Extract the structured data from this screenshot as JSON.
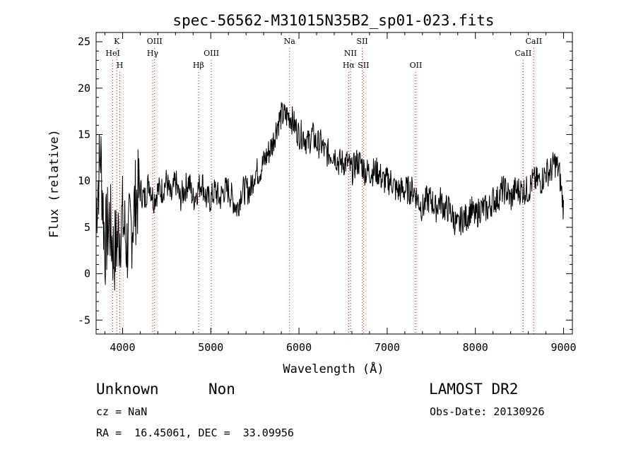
{
  "chart_data": {
    "type": "line",
    "title": "spec-56562-M31015N35B2_sp01-023.fits",
    "xlabel": "Wavelength (Å)",
    "ylabel": "Flux (relative)",
    "xlim": [
      3700,
      9100
    ],
    "ylim": [
      -6.5,
      26
    ],
    "xticks": [
      4000,
      5000,
      6000,
      7000,
      8000,
      9000
    ],
    "yticks": [
      -5,
      0,
      5,
      10,
      15,
      20,
      25
    ],
    "grid": false,
    "series": [
      {
        "x": [
          3700,
          3750,
          3800,
          3850,
          3900,
          3950,
          4000,
          4050,
          4100,
          4150,
          4200,
          4250,
          4300,
          4350,
          4400,
          4450,
          4500,
          4550,
          4600,
          4650,
          4700,
          4750,
          4800,
          4850,
          4900,
          4950,
          5000,
          5050,
          5100,
          5150,
          5200,
          5250,
          5300,
          5350,
          5400,
          5450,
          5500,
          5550,
          5600,
          5650,
          5700,
          5750,
          5800,
          5850,
          5900,
          5950,
          6000,
          6050,
          6100,
          6150,
          6200,
          6250,
          6300,
          6350,
          6400,
          6450,
          6500,
          6550,
          6600,
          6650,
          6700,
          6750,
          6800,
          6850,
          6900,
          6950,
          7000,
          7050,
          7100,
          7150,
          7200,
          7250,
          7300,
          7350,
          7400,
          7450,
          7500,
          7550,
          7600,
          7650,
          7700,
          7750,
          7800,
          7850,
          7900,
          7950,
          8000,
          8050,
          8100,
          8150,
          8200,
          8250,
          8300,
          8350,
          8400,
          8450,
          8500,
          8550,
          8600,
          8650,
          8700,
          8750,
          8800,
          8850,
          8900,
          8950,
          9000
        ],
        "y": [
          7,
          13,
          3,
          6,
          2,
          4,
          6,
          3,
          5,
          8,
          9,
          8,
          10,
          8,
          9,
          9,
          10,
          8,
          10,
          8,
          9,
          10,
          8,
          9,
          10,
          8,
          8,
          9,
          8,
          9,
          9,
          8,
          7,
          9,
          9,
          9,
          11,
          11,
          12,
          13,
          14,
          16,
          17,
          17,
          17,
          16,
          15,
          15,
          14,
          15,
          14,
          14,
          13,
          13,
          13,
          12,
          12,
          12,
          11,
          12,
          12,
          11,
          11,
          11,
          11,
          10,
          10,
          10,
          9,
          9,
          9,
          9,
          9,
          8,
          7,
          8,
          8,
          7,
          8,
          7,
          7,
          6,
          5,
          6,
          6,
          7,
          6,
          7,
          7,
          7,
          8,
          8,
          9,
          9,
          8,
          9,
          9,
          9,
          9,
          10,
          10,
          10,
          11,
          11,
          12,
          11,
          7
        ]
      }
    ],
    "annotations": {
      "lines": [
        {
          "label": "K",
          "x": 3934,
          "row": 0
        },
        {
          "label": "HeI",
          "x": 3889,
          "row": 1
        },
        {
          "label": "H",
          "x": 3969,
          "row": 2
        },
        {
          "label": "OIII",
          "x": 4363,
          "row": 0
        },
        {
          "label": "Hγ",
          "x": 4341,
          "row": 1
        },
        {
          "label": "Hβ",
          "x": 4861,
          "row": 2
        },
        {
          "label": "OIII",
          "x": 5007,
          "row": 1
        },
        {
          "label": "Na",
          "x": 5893,
          "row": 0
        },
        {
          "label": "SII",
          "x": 6717,
          "row": 0
        },
        {
          "label": "NII",
          "x": 6584,
          "row": 1
        },
        {
          "label": "Hα",
          "x": 6563,
          "row": 2
        },
        {
          "label": "SII",
          "x": 6731,
          "row": 2
        },
        {
          "label": "OII",
          "x": 7325,
          "row": 2
        },
        {
          "label": "CaII",
          "x": 8662,
          "row": 0
        },
        {
          "label": "CaII",
          "x": 8542,
          "row": 1
        }
      ]
    }
  },
  "info": {
    "class": "Unknown",
    "subclass": "Non",
    "survey": "LAMOST DR2",
    "cz": "cz = NaN",
    "obs_date": "Obs-Date: 20130926",
    "radec": "RA =  16.45061, DEC =  33.09956"
  }
}
